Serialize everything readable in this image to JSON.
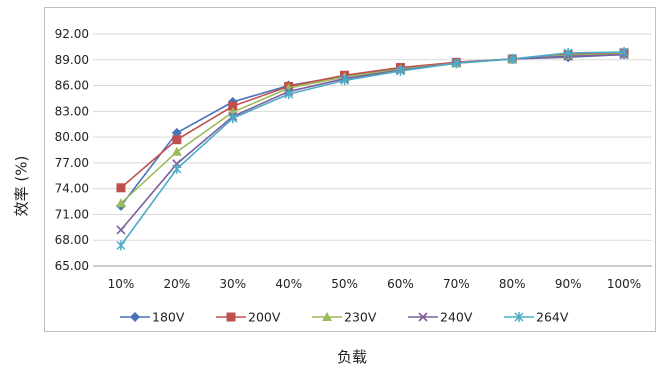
{
  "chart_data": {
    "type": "line",
    "title": "",
    "xlabel": "负载",
    "ylabel": "效率 (%)",
    "categories": [
      "10%",
      "20%",
      "30%",
      "40%",
      "50%",
      "60%",
      "70%",
      "80%",
      "90%",
      "100%"
    ],
    "ylim": [
      65.0,
      92.0
    ],
    "yticks": [
      "65.00",
      "68.00",
      "71.00",
      "74.00",
      "77.00",
      "80.00",
      "83.00",
      "86.00",
      "89.00",
      "92.00"
    ],
    "grid": true,
    "legend_position": "bottom",
    "series": [
      {
        "name": "180V",
        "color": "#4a72b8",
        "marker": "diamond",
        "values": [
          72.0,
          80.5,
          84.1,
          86.0,
          87.1,
          88.0,
          88.7,
          89.1,
          89.3,
          89.6
        ]
      },
      {
        "name": "200V",
        "color": "#c0504d",
        "marker": "square",
        "values": [
          74.1,
          79.7,
          83.6,
          85.9,
          87.2,
          88.1,
          88.7,
          89.1,
          89.6,
          89.8
        ]
      },
      {
        "name": "230V",
        "color": "#9bbb59",
        "marker": "triangle",
        "values": [
          72.3,
          78.3,
          82.9,
          85.7,
          87.0,
          87.9,
          88.6,
          89.1,
          89.5,
          89.7
        ]
      },
      {
        "name": "240V",
        "color": "#7d5fa0",
        "marker": "x",
        "values": [
          69.2,
          76.9,
          82.4,
          85.3,
          86.8,
          87.8,
          88.6,
          89.1,
          89.4,
          89.6
        ]
      },
      {
        "name": "264V",
        "color": "#4bacc6",
        "marker": "star",
        "values": [
          67.4,
          76.3,
          82.2,
          85.0,
          86.6,
          87.7,
          88.6,
          89.1,
          89.8,
          89.9
        ]
      }
    ]
  }
}
